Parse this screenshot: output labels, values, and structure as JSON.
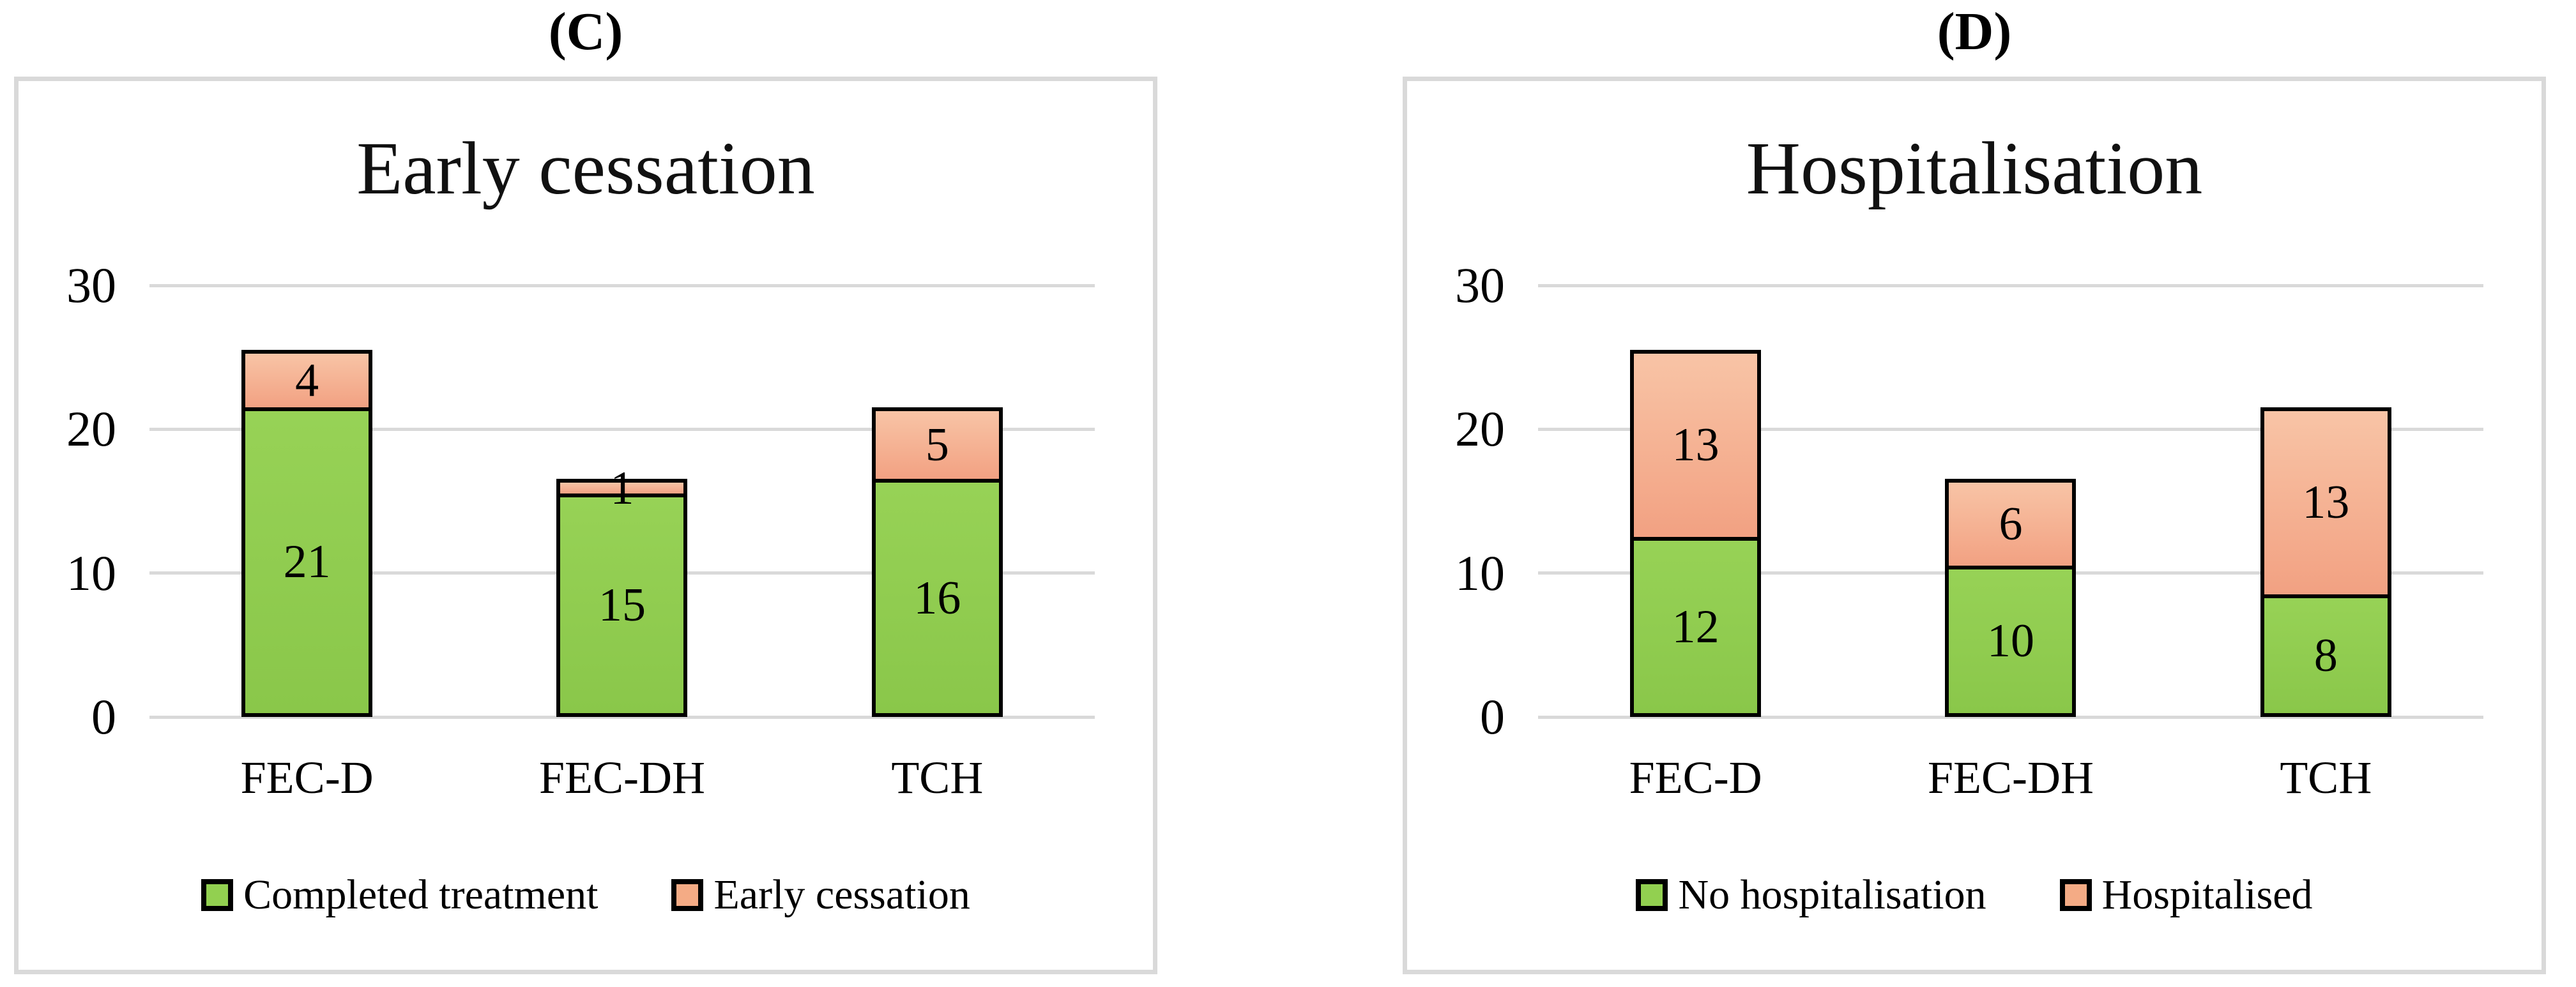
{
  "page": {
    "background": "#ffffff"
  },
  "colors": {
    "green": "#92d050",
    "green_gradient_top": "#97d256",
    "green_gradient_bottom": "#8ac74a",
    "salmon": "#f4ab85",
    "salmon_gradient_top": "#f8c4a6",
    "salmon_gradient_bottom": "#f2a182",
    "bar_border": "#000000",
    "gridline": "#d9d9d9",
    "panel_border": "#d9d9d9",
    "text": "#000000"
  },
  "chart_data": [
    {
      "type": "bar",
      "stacked": true,
      "panel_label": "(C)",
      "title": "Early cessation",
      "categories": [
        "FEC-D",
        "FEC-DH",
        "TCH"
      ],
      "series": [
        {
          "name": "Completed treatment",
          "color_key": "green",
          "values": [
            21,
            15,
            16
          ]
        },
        {
          "name": "Early cessation",
          "color_key": "salmon",
          "values": [
            4,
            1,
            5
          ]
        }
      ],
      "totals": [
        25,
        16,
        21
      ],
      "ylim": [
        0,
        30
      ],
      "y_ticks": [
        0,
        10,
        20,
        30
      ],
      "grid": true,
      "legend_position": "bottom",
      "legend": [
        "Completed treatment",
        "Early cessation"
      ]
    },
    {
      "type": "bar",
      "stacked": true,
      "panel_label": "(D)",
      "title": "Hospitalisation",
      "categories": [
        "FEC-D",
        "FEC-DH",
        "TCH"
      ],
      "series": [
        {
          "name": "No hospitalisation",
          "color_key": "green",
          "values": [
            12,
            10,
            8
          ]
        },
        {
          "name": "Hospitalised",
          "color_key": "salmon",
          "values": [
            13,
            6,
            13
          ]
        }
      ],
      "totals": [
        25,
        16,
        21
      ],
      "ylim": [
        0,
        30
      ],
      "y_ticks": [
        0,
        10,
        20,
        30
      ],
      "grid": true,
      "legend_position": "bottom",
      "legend": [
        "No hospitalisation",
        "Hospitalised"
      ]
    }
  ]
}
